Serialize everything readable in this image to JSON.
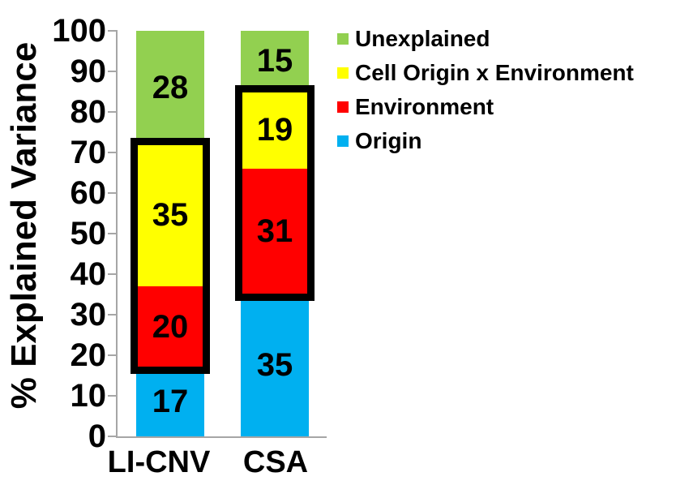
{
  "chart_data": {
    "type": "bar",
    "subtype": "stacked-vertical",
    "title": "",
    "xlabel": "",
    "ylabel": "% Explained Variance",
    "ylim": [
      0,
      100
    ],
    "yticks": [
      0,
      10,
      20,
      30,
      40,
      50,
      60,
      70,
      80,
      90,
      100
    ],
    "grid": false,
    "categories": [
      "LI-CNV",
      "CSA"
    ],
    "series": [
      {
        "name": "Origin",
        "color": "#00B0F0",
        "values": [
          17,
          35
        ]
      },
      {
        "name": "Environment",
        "color": "#FF0000",
        "values": [
          20,
          31
        ]
      },
      {
        "name": "Cell Origin x Environment",
        "color": "#FFFF00",
        "values": [
          35,
          19
        ]
      },
      {
        "name": "Unexplained",
        "color": "#92D050",
        "values": [
          28,
          15
        ]
      }
    ],
    "data_labels_shown": true,
    "legend_position": "top-right",
    "legend_order": [
      "Unexplained",
      "Cell Origin x Environment",
      "Environment",
      "Origin"
    ],
    "highlight_boxes": [
      {
        "category": "LI-CNV",
        "span_series": [
          "Environment",
          "Cell Origin x Environment"
        ],
        "from": 17,
        "to": 72,
        "color": "#000000"
      },
      {
        "category": "CSA",
        "span_series": [
          "Environment",
          "Cell Origin x Environment"
        ],
        "from": 35,
        "to": 85,
        "color": "#000000"
      }
    ],
    "axis_color": "#A6A6A6",
    "text_color": "#000000",
    "background_color": "#FFFFFF"
  }
}
